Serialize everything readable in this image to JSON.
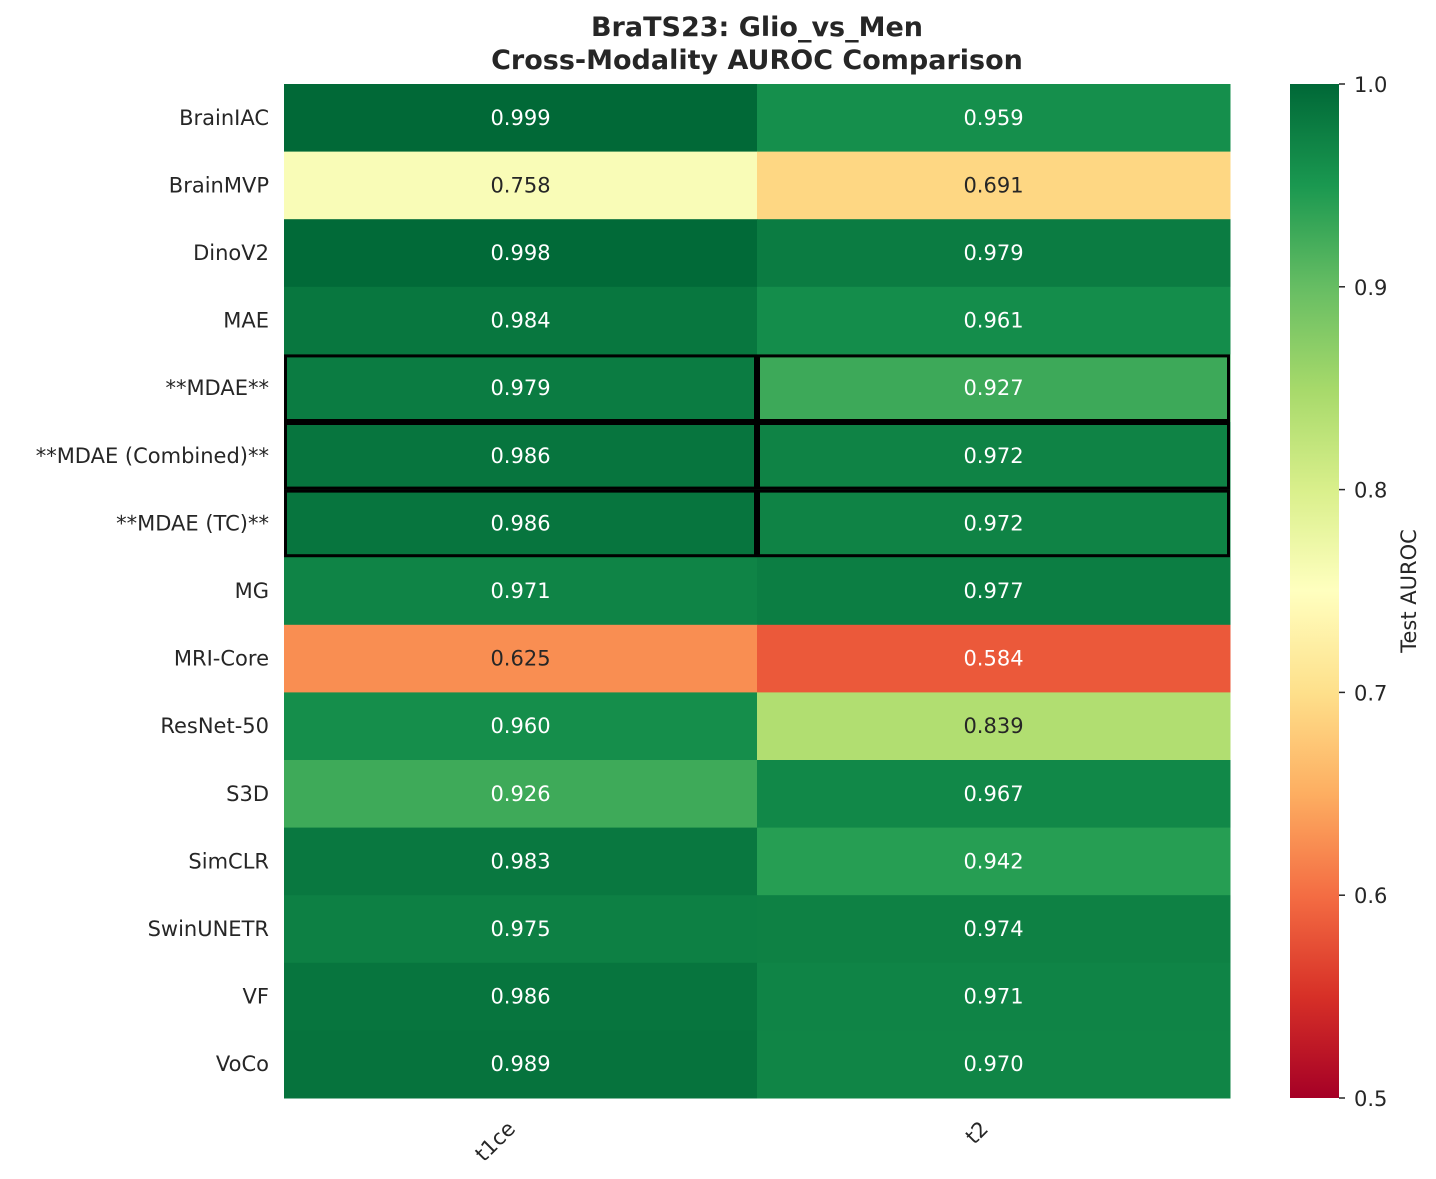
{
  "chart_data": {
    "type": "heatmap",
    "title_line1": "BraTS23: Glio_vs_Men",
    "title_line2": "Cross-Modality AUROC Comparison",
    "columns": [
      "t1ce",
      "t2"
    ],
    "rows": [
      "BrainIAC",
      "BrainMVP",
      "DinoV2",
      "MAE",
      "**MDAE**",
      "**MDAE (Combined)**",
      "**MDAE (TC)**",
      "MG",
      "MRI-Core",
      "ResNet-50",
      "S3D",
      "SimCLR",
      "SwinUNETR",
      "VF",
      "VoCo"
    ],
    "values": [
      [
        0.999,
        0.959
      ],
      [
        0.758,
        0.691
      ],
      [
        0.998,
        0.979
      ],
      [
        0.984,
        0.961
      ],
      [
        0.979,
        0.927
      ],
      [
        0.986,
        0.972
      ],
      [
        0.986,
        0.972
      ],
      [
        0.971,
        0.977
      ],
      [
        0.625,
        0.584
      ],
      [
        0.96,
        0.839
      ],
      [
        0.926,
        0.967
      ],
      [
        0.983,
        0.942
      ],
      [
        0.975,
        0.974
      ],
      [
        0.986,
        0.971
      ],
      [
        0.989,
        0.97
      ]
    ],
    "value_labels": [
      [
        "0.999",
        "0.959"
      ],
      [
        "0.758",
        "0.691"
      ],
      [
        "0.998",
        "0.979"
      ],
      [
        "0.984",
        "0.961"
      ],
      [
        "0.979",
        "0.927"
      ],
      [
        "0.986",
        "0.972"
      ],
      [
        "0.986",
        "0.972"
      ],
      [
        "0.971",
        "0.977"
      ],
      [
        "0.625",
        "0.584"
      ],
      [
        "0.960",
        "0.839"
      ],
      [
        "0.926",
        "0.967"
      ],
      [
        "0.983",
        "0.942"
      ],
      [
        "0.975",
        "0.974"
      ],
      [
        "0.986",
        "0.971"
      ],
      [
        "0.989",
        "0.970"
      ]
    ],
    "highlighted_rows": [
      "**MDAE**",
      "**MDAE (Combined)**",
      "**MDAE (TC)**"
    ],
    "colormap": "RdYlGn",
    "colorbar": {
      "label": "Test AUROC",
      "vmin": 0.5,
      "vmax": 1.0,
      "ticks": [
        "0.5",
        "0.6",
        "0.7",
        "0.8",
        "0.9",
        "1.0"
      ]
    },
    "grid": false,
    "legend": "colorbar-right"
  },
  "colors": {
    "text": "#262626",
    "highlight_border": "#000000",
    "cell_text_light": "#ffffff",
    "cell_text_dark": "#262626"
  }
}
